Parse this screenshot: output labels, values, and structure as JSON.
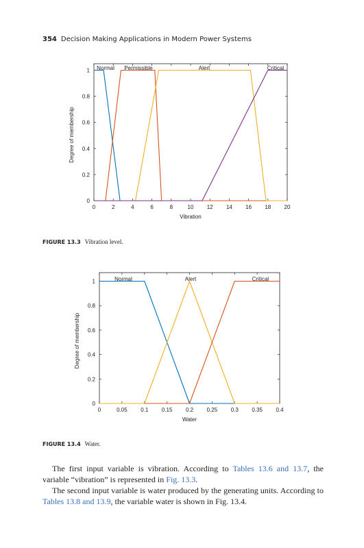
{
  "header": {
    "page_number": "354",
    "book_title": "Decision Making Applications in Modern Power Systems"
  },
  "figures": [
    {
      "caption_label": "FIGURE 13.3",
      "caption_text": "Vibration level.",
      "chart_data": {
        "type": "line",
        "xlabel": "Vibration",
        "ylabel": "Degree of membership",
        "xlim": [
          0,
          20
        ],
        "ylim": [
          0,
          1
        ],
        "xticks": [
          0,
          2,
          4,
          6,
          8,
          10,
          12,
          14,
          16,
          18,
          20
        ],
        "yticks": [
          0,
          0.2,
          0.4,
          0.6,
          0.8,
          1
        ],
        "grid": false,
        "series": [
          {
            "name": "Normal",
            "color": "#0072BD",
            "x": [
              0,
              1,
              2.7,
              20
            ],
            "y": [
              1,
              1,
              0,
              0
            ]
          },
          {
            "name": "Permissible",
            "color": "#D95319",
            "x": [
              0,
              1.2,
              2.8,
              6.3,
              7,
              20
            ],
            "y": [
              0,
              0,
              1,
              1,
              0,
              0
            ]
          },
          {
            "name": "Alert",
            "color": "#EDB120",
            "x": [
              0,
              4.3,
              6.7,
              16.2,
              17.8,
              20
            ],
            "y": [
              0,
              0,
              1,
              1,
              0,
              0
            ]
          },
          {
            "name": "Critical",
            "color": "#7E2F8E",
            "x": [
              0,
              11.2,
              18,
              20
            ],
            "y": [
              0,
              0,
              1,
              1
            ]
          }
        ]
      }
    },
    {
      "caption_label": "FIGURE 13.4",
      "caption_text": "Water.",
      "chart_data": {
        "type": "line",
        "xlabel": "Water",
        "ylabel": "Degree of membership",
        "xlim": [
          0,
          0.4
        ],
        "ylim": [
          0,
          1
        ],
        "xticks": [
          0,
          0.05,
          0.1,
          0.15,
          0.2,
          0.25,
          0.3,
          0.35,
          0.4
        ],
        "yticks": [
          0,
          0.2,
          0.4,
          0.6,
          0.8,
          1
        ],
        "grid": false,
        "series": [
          {
            "name": "Normal",
            "color": "#0072BD",
            "x": [
              0,
              0.1,
              0.2,
              0.3
            ],
            "y": [
              1,
              1,
              0,
              0
            ]
          },
          {
            "name": "Alert",
            "color": "#EDB120",
            "x": [
              0,
              0.1,
              0.2,
              0.3,
              0.4
            ],
            "y": [
              0,
              0,
              1,
              0,
              0
            ]
          },
          {
            "name": "Critical",
            "color": "#D95319",
            "x": [
              0.1,
              0.2,
              0.3,
              0.4
            ],
            "y": [
              0,
              0,
              1,
              1
            ]
          }
        ]
      }
    }
  ],
  "body": {
    "p1_a": "The first input variable is vibration. According to ",
    "p1_ref1": "Tables 13.6 and 13.7",
    "p1_b": ", the variable “vibration” is represented in ",
    "p1_ref2": "Fig. 13.3",
    "p1_c": ".",
    "p2_a": "The second input variable is water produced by the generating units. According to ",
    "p2_ref1": "Tables 13.8 and 13.9",
    "p2_b": ", the variable water is shown in Fig. 13.4."
  }
}
